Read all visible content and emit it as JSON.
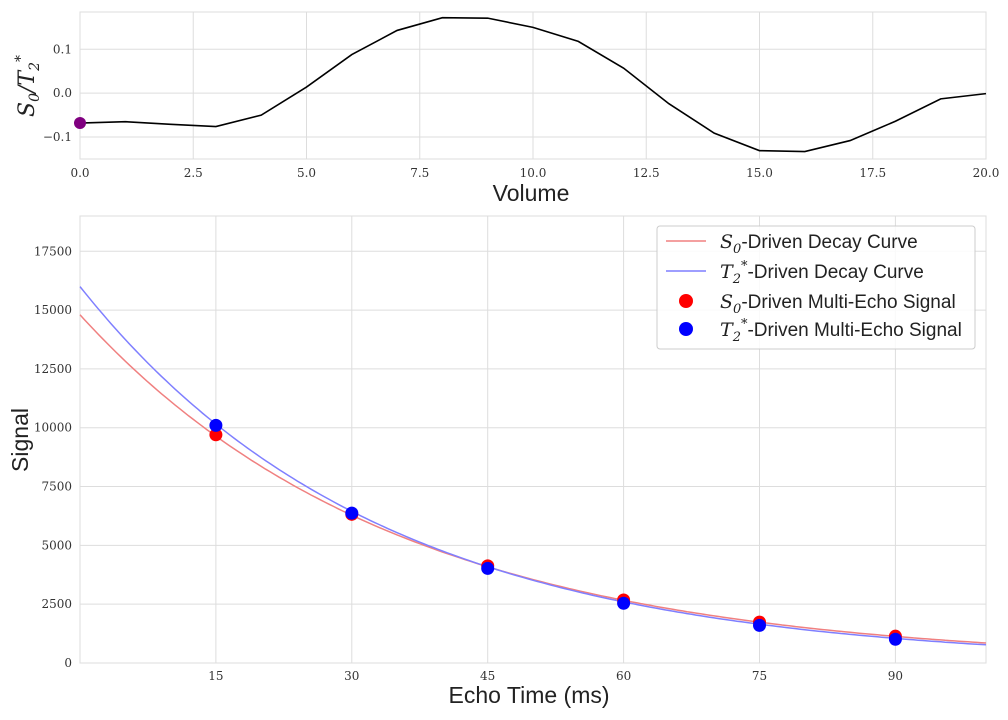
{
  "chart_data": [
    {
      "type": "line",
      "xlabel": "Volume",
      "ylabel": "S0/T2*",
      "ylabel_main": "S",
      "ylabel_sub1": "0",
      "ylabel_mid": "/T",
      "ylabel_sub2": "2",
      "ylabel_sup": "*",
      "xlim": [
        0,
        20
      ],
      "ylim": [
        -0.15,
        0.185
      ],
      "xticks": [
        "0.0",
        "2.5",
        "5.0",
        "7.5",
        "10.0",
        "12.5",
        "15.0",
        "17.5",
        "20.0"
      ],
      "yticks": [
        "-0.1",
        "0.0",
        "0.1"
      ],
      "grid": true,
      "series": [
        {
          "color": "#000000",
          "x": [
            0,
            1,
            2,
            3,
            4,
            5,
            6,
            7,
            8,
            9,
            10,
            11,
            12,
            13,
            14,
            15,
            16,
            17,
            18,
            19,
            20
          ],
          "y": [
            -0.068,
            -0.065,
            -0.071,
            -0.076,
            -0.05,
            0.014,
            0.088,
            0.143,
            0.172,
            0.171,
            0.15,
            0.118,
            0.057,
            -0.024,
            -0.091,
            -0.131,
            -0.133,
            -0.108,
            -0.064,
            -0.013,
            -0.001
          ]
        }
      ],
      "marker": {
        "x": 0,
        "y": -0.068,
        "color": "#800080"
      }
    },
    {
      "type": "line",
      "xlabel": "Echo Time (ms)",
      "ylabel": "Signal",
      "xlim": [
        0,
        100
      ],
      "ylim": [
        0,
        19000
      ],
      "xticks": [
        "15",
        "30",
        "45",
        "60",
        "75",
        "90"
      ],
      "yticks": [
        "0",
        "2500",
        "5000",
        "7500",
        "10000",
        "12500",
        "15000",
        "17500"
      ],
      "grid": true,
      "legend_position": "top-right",
      "series": [
        {
          "name": "S0-Driven Decay Curve",
          "kind": "curve",
          "color": "#f08080",
          "model": {
            "S0": 14800,
            "T2star_ms": 35
          }
        },
        {
          "name": "T2*-Driven Decay Curve",
          "kind": "curve",
          "color": "#7f7fff",
          "model": {
            "S0": 16000,
            "T2star_ms": 33
          }
        },
        {
          "name": "S0-Driven Multi-Echo Signal",
          "kind": "points",
          "color": "#ff0000",
          "x": [
            15,
            30,
            45,
            60,
            75,
            90
          ],
          "y": [
            9700,
            6320,
            4130,
            2680,
            1740,
            1140
          ]
        },
        {
          "name": "T2*-Driven Multi-Echo Signal",
          "kind": "points",
          "color": "#0000ff",
          "x": [
            15,
            30,
            45,
            60,
            75,
            90
          ],
          "y": [
            10100,
            6370,
            4020,
            2540,
            1600,
            1010
          ]
        }
      ],
      "legend": [
        {
          "math": "S",
          "sub": "0",
          "sup": "",
          "text": "-Driven Decay Curve"
        },
        {
          "math": "T",
          "sub": "2",
          "sup": "*",
          "text": "-Driven Decay Curve"
        },
        {
          "math": "S",
          "sub": "0",
          "sup": "",
          "text": "-Driven Multi-Echo Signal"
        },
        {
          "math": "T",
          "sub": "2",
          "sup": "*",
          "text": "-Driven Multi-Echo Signal"
        }
      ]
    }
  ]
}
